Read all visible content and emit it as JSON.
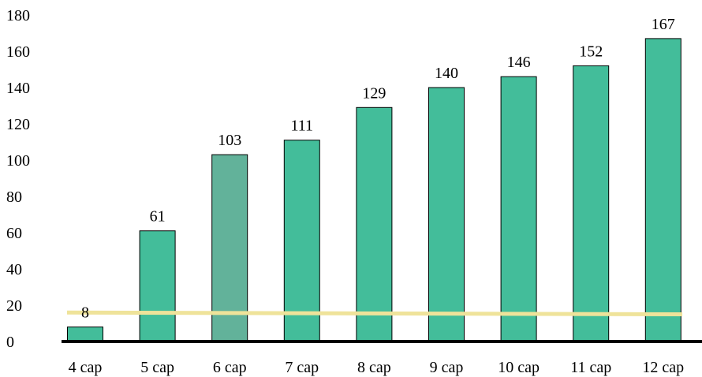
{
  "chart_data": {
    "type": "bar",
    "categories": [
      "4 cap",
      "5 cap",
      "6 cap",
      "7 cap",
      "8 cap",
      "9 cap",
      "10 cap",
      "11 cap",
      "12 cap"
    ],
    "values": [
      8,
      61,
      103,
      111,
      129,
      140,
      146,
      152,
      167
    ],
    "data_labels": [
      "8",
      "61",
      "103",
      "111",
      "129",
      "140",
      "146",
      "152",
      "167"
    ],
    "yticks": [
      "0",
      "20",
      "40",
      "60",
      "80",
      "100",
      "120",
      "140",
      "160",
      "180"
    ],
    "ylim": [
      0,
      180
    ],
    "grid": false,
    "legend": "none",
    "reference_line": {
      "y_start": 16,
      "y_end": 15
    },
    "colors": {
      "bar": "#43bd9a",
      "highlight_bar": "#62b29a",
      "bar_stroke": "#000000",
      "reference_line": "#efe39a",
      "axis": "#000000"
    },
    "highlight_category": "6 cap",
    "title": "",
    "xlabel": "",
    "ylabel": ""
  }
}
